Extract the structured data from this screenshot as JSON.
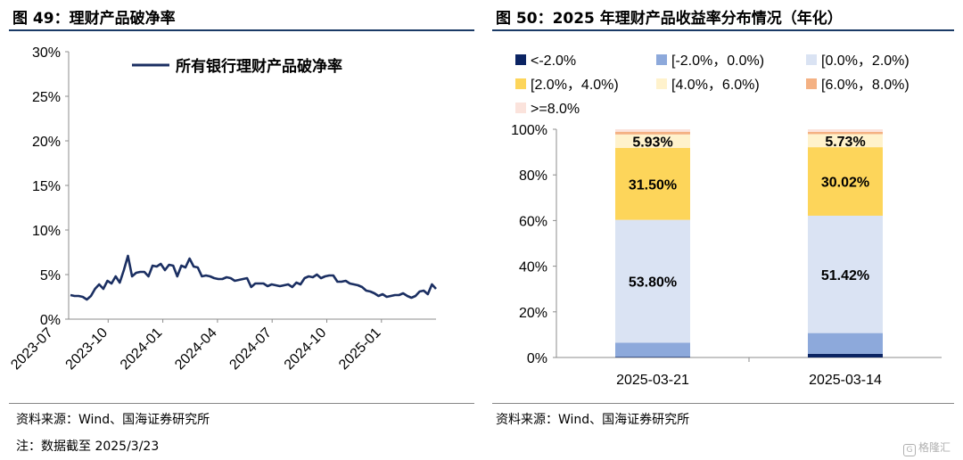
{
  "titles": {
    "left": "图 49：理财产品破净率",
    "right": "图 50：2025 年理财产品收益率分布情况（年化）"
  },
  "sources": {
    "left": "资料来源：Wind、国海证券研究所",
    "right": "资料来源：Wind、国海证券研究所"
  },
  "note": "注：数据截至 2025/3/23",
  "watermark": "格隆汇",
  "chart_data": [
    {
      "type": "line",
      "series": [
        {
          "name": "所有银行理财产品破净率",
          "color": "#1b2f62",
          "values": [
            2.7,
            2.6,
            2.6,
            2.5,
            2.2,
            2.6,
            3.4,
            3.9,
            3.4,
            4.3,
            4.0,
            4.8,
            4.1,
            5.5,
            7.1,
            4.8,
            5.2,
            5.3,
            5.3,
            4.8,
            6.0,
            5.9,
            6.2,
            5.5,
            6.1,
            6.0,
            4.8,
            6.0,
            5.8,
            6.8,
            5.9,
            5.8,
            4.8,
            4.9,
            4.8,
            4.6,
            4.5,
            4.5,
            4.7,
            4.6,
            4.3,
            4.4,
            4.5,
            4.6,
            3.6,
            4.0,
            4.0,
            4.0,
            3.7,
            3.9,
            3.8,
            3.7,
            3.8,
            3.9,
            3.6,
            4.1,
            3.9,
            4.6,
            4.8,
            4.7,
            5.0,
            4.6,
            4.8,
            4.9,
            4.9,
            4.2,
            4.2,
            4.3,
            4.0,
            3.9,
            3.8,
            3.6,
            3.2,
            3.1,
            2.9,
            2.6,
            2.8,
            2.5,
            2.6,
            2.7,
            2.7,
            2.9,
            2.6,
            2.4,
            2.6,
            3.1,
            3.2,
            2.8,
            3.9,
            3.4
          ]
        }
      ],
      "x_tick_labels": [
        "2023-07",
        "2023-10",
        "2024-01",
        "2024-04",
        "2024-07",
        "2024-10",
        "2025-01"
      ],
      "y_tick_labels": [
        "0%",
        "5%",
        "10%",
        "15%",
        "20%",
        "25%",
        "30%"
      ],
      "ylim": [
        0,
        30
      ],
      "grid": false,
      "legend_position": "top-center"
    },
    {
      "type": "bar",
      "stacked": true,
      "categories": [
        "2025-03-21",
        "2025-03-14"
      ],
      "series": [
        {
          "name": "<-2.0%",
          "color": "#0b2463",
          "values": [
            0.3,
            1.6
          ]
        },
        {
          "name": "[-2.0%，0.0%)",
          "color": "#8da9db",
          "values": [
            6.2,
            9.1
          ]
        },
        {
          "name": "[0.0%，2.0%)",
          "color": "#dae3f3",
          "values": [
            53.8,
            51.42
          ]
        },
        {
          "name": "[2.0%，4.0%)",
          "color": "#fdd55a",
          "values": [
            31.5,
            30.02
          ]
        },
        {
          "name": "[4.0%，6.0%)",
          "color": "#fff2cc",
          "values": [
            5.93,
            5.73
          ]
        },
        {
          "name": "[6.0%，8.0%)",
          "color": "#f4b183",
          "values": [
            1.2,
            1.0
          ]
        },
        {
          "name": ">=8.0%",
          "color": "#fbe3dc",
          "values": [
            1.07,
            1.12
          ]
        }
      ],
      "data_labels": [
        {
          "series": "[0.0%，2.0%)",
          "labels": [
            "53.80%",
            "51.42%"
          ]
        },
        {
          "series": "[2.0%，4.0%)",
          "labels": [
            "31.50%",
            "30.02%"
          ]
        },
        {
          "series": "[4.0%，6.0%)",
          "labels": [
            "5.93%",
            "5.73%"
          ]
        }
      ],
      "y_tick_labels": [
        "0%",
        "20%",
        "40%",
        "60%",
        "80%",
        "100%"
      ],
      "ylim": [
        0,
        100
      ],
      "grid": false,
      "legend_position": "top"
    }
  ]
}
